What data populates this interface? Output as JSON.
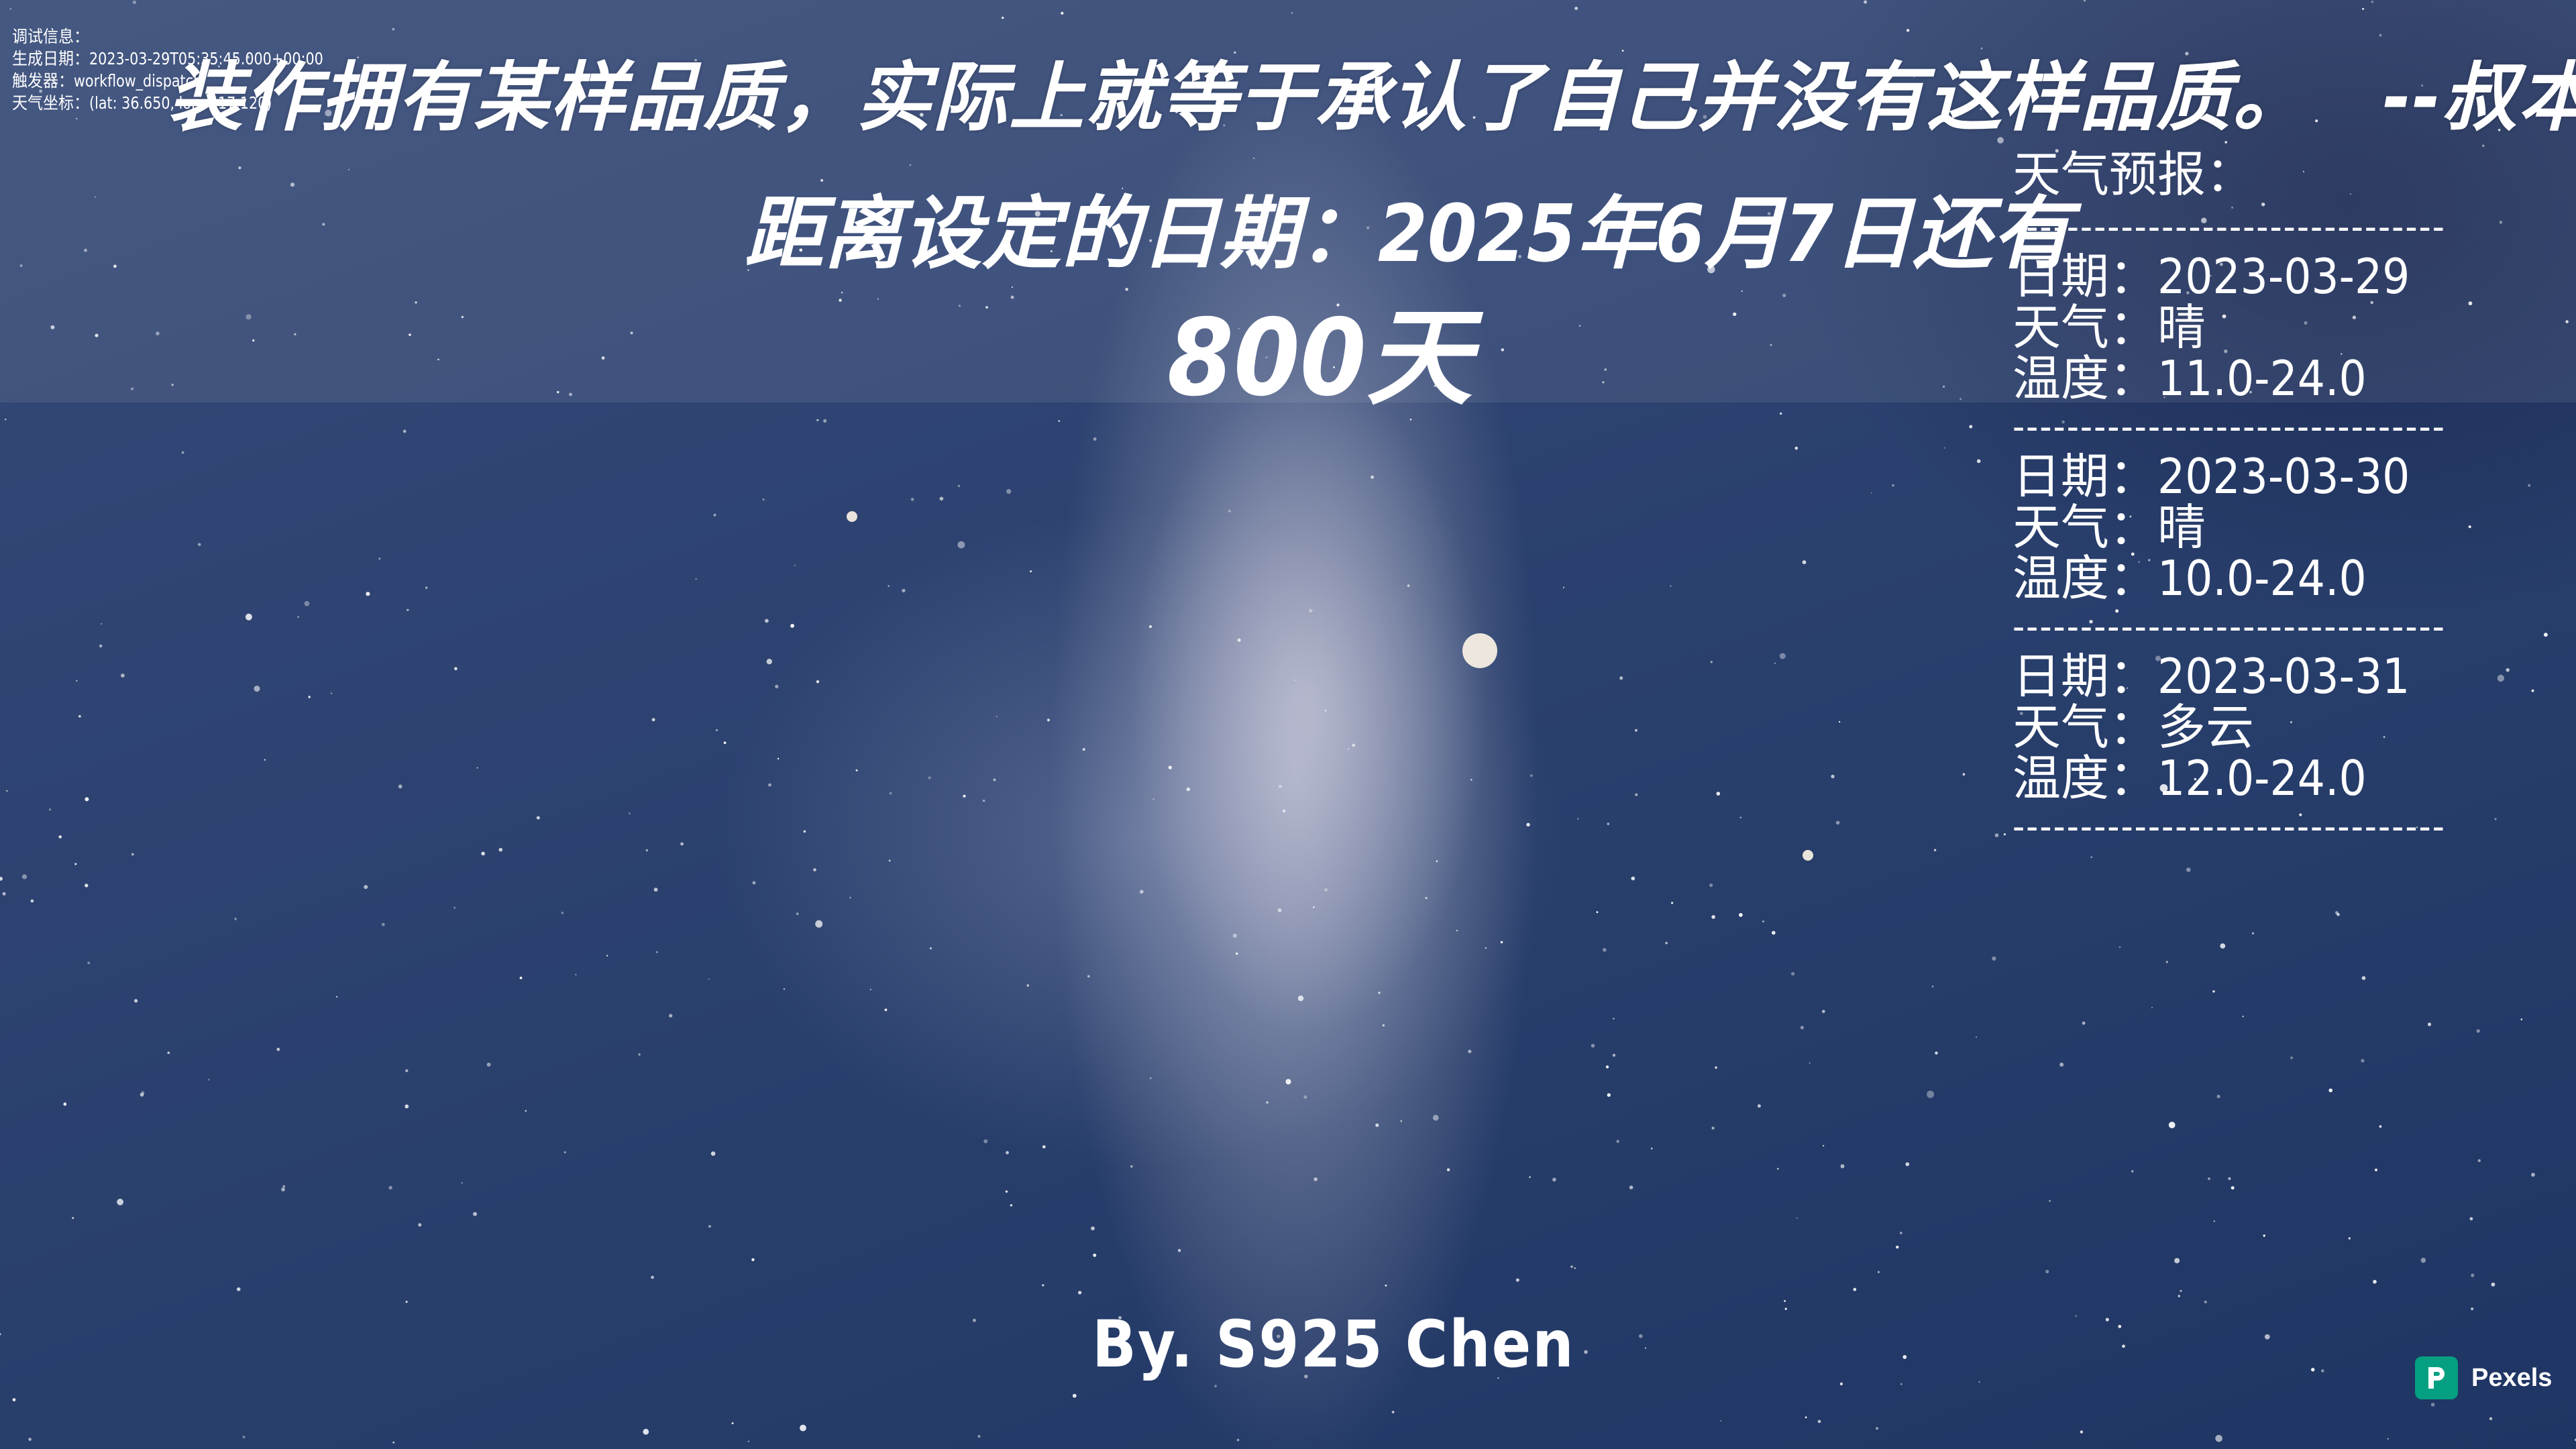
{
  "quote": {
    "text": "装作拥有某样品质，实际上就等于承认了自己并没有这样品质。",
    "source": "--叔本华 人生的智慧"
  },
  "countdown": {
    "label": "距离设定的日期：2025年6月7日还有",
    "days": "800天"
  },
  "debug": {
    "title": "调试信息：",
    "generated": "生成日期：2023-03-29T05:35:45.000+00:00",
    "trigger": "触发器：workflow_dispatch",
    "coords": "天气坐标：(lat: 36.650, lon: 117.120)"
  },
  "weather": {
    "title": "天气预报：",
    "separator": "--------------------------------",
    "days": [
      {
        "date": "日期：2023-03-29",
        "condition": "天气：晴",
        "temp": "温度：11.0-24.0"
      },
      {
        "date": "日期：2023-03-30",
        "condition": "天气：晴",
        "temp": "温度：10.0-24.0"
      },
      {
        "date": "日期：2023-03-31",
        "condition": "天气：多云",
        "temp": "温度：12.0-24.0"
      }
    ]
  },
  "signature": "By. S925 Chen",
  "pexels": {
    "label": "Pexels",
    "icon": "pexels-logo-icon",
    "color": "#05A081"
  },
  "colors": {
    "text": "#FFFFFF",
    "sky_dark": "#1F3563",
    "sky_light": "#364A78"
  }
}
